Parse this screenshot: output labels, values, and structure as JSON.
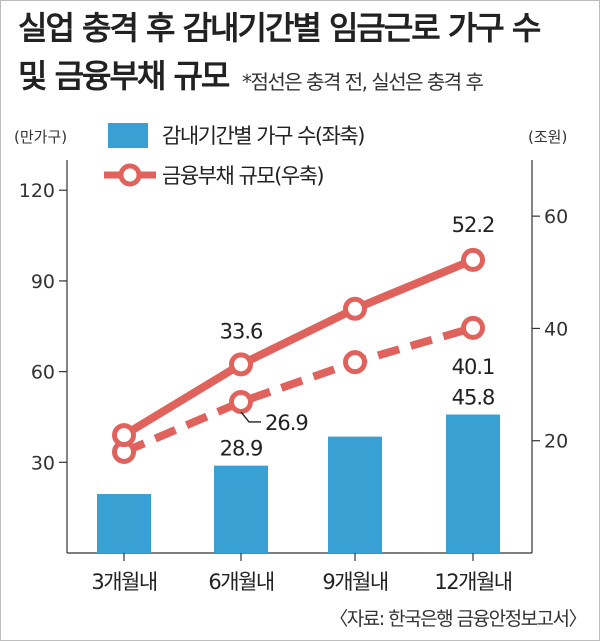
{
  "title_line1": "실업 충격 후 감내기간별 임금근로 가구 수",
  "title_line2": "및 금융부채 규모",
  "subtitle": "*점선은 충격 전, 실선은 충격 후",
  "left_unit": "(만가구)",
  "right_unit": "(조원)",
  "source": "〈자료: 한국은행 금융안정보고서〉",
  "colors": {
    "bar": "#39a0d3",
    "line": "#e0625c",
    "axis": "#333333"
  },
  "chart_data": {
    "type": "bar+line",
    "categories": [
      "3개월내",
      "6개월내",
      "9개월내",
      "12개월내"
    ],
    "left_axis": {
      "ticks": [
        "30",
        "60",
        "90",
        "120"
      ],
      "range": [
        0,
        130
      ]
    },
    "right_axis": {
      "ticks": [
        "20",
        "40",
        "60"
      ],
      "range": [
        0,
        70
      ]
    },
    "series": [
      {
        "name": "감내기간별 가구 수(좌축)",
        "type": "bar",
        "axis": "left",
        "values": [
          19.5,
          28.9,
          38.5,
          45.8
        ]
      },
      {
        "name": "금융부채 규모(우축)",
        "type": "line",
        "axis": "right",
        "style": "solid",
        "values": [
          21,
          33.6,
          43.5,
          52.2
        ]
      },
      {
        "name": "금융부채 규모(충격 전)",
        "type": "line",
        "axis": "right",
        "style": "dashed",
        "values": [
          18,
          26.9,
          34,
          40.1
        ]
      }
    ],
    "data_labels": [
      {
        "series": 0,
        "index": 1,
        "text": "28.9"
      },
      {
        "series": 0,
        "index": 3,
        "text": "45.8"
      },
      {
        "series": 1,
        "index": 1,
        "text": "33.6"
      },
      {
        "series": 1,
        "index": 3,
        "text": "52.2"
      },
      {
        "series": 2,
        "index": 1,
        "text": "26.9"
      },
      {
        "series": 2,
        "index": 3,
        "text": "40.1"
      }
    ],
    "legend": [
      "감내기간별 가구 수(좌축)",
      "금융부채 규모(우축)"
    ],
    "legend_position": "top"
  }
}
